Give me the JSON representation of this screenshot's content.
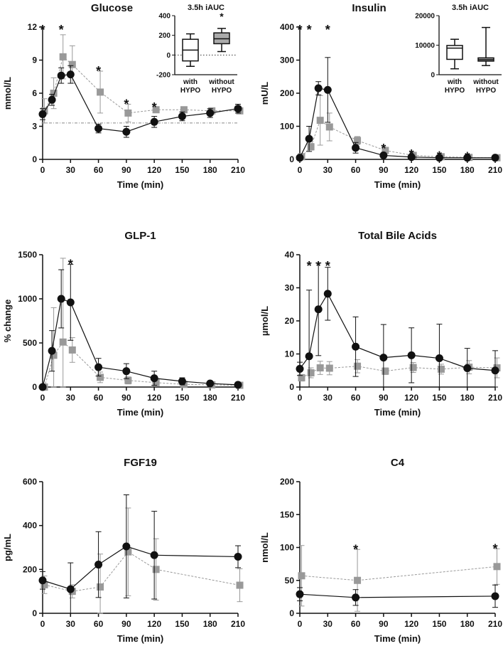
{
  "chart_data": [
    {
      "type": "line",
      "title": "Glucose",
      "xlabel": "Time (min)",
      "ylabel": "mmol/L",
      "ylim": [
        0,
        12
      ],
      "yticks": [
        0,
        3,
        6,
        9,
        12
      ],
      "xticks": [
        0,
        30,
        60,
        90,
        120,
        150,
        180,
        210
      ],
      "x": [
        0,
        10,
        20,
        30,
        60,
        90,
        120,
        150,
        180,
        210
      ],
      "series": [
        {
          "name": "with HYPO",
          "values": [
            4.1,
            5.4,
            7.6,
            7.7,
            2.8,
            2.5,
            3.4,
            3.9,
            4.2,
            4.6
          ],
          "err": [
            0.5,
            0.5,
            0.7,
            0.8,
            0.4,
            0.5,
            0.5,
            0.4,
            0.4,
            0.4
          ]
        },
        {
          "name": "without HYPO",
          "values": [
            4.4,
            6.0,
            9.3,
            8.6,
            6.1,
            4.2,
            4.5,
            4.5,
            4.4,
            4.4
          ],
          "err": [
            1.1,
            1.4,
            2.0,
            1.7,
            1.9,
            0.8,
            0.2,
            0.2,
            0.2,
            0.2
          ]
        }
      ],
      "hline": 3.3,
      "stars": [
        0,
        20,
        60,
        90,
        120
      ],
      "star_label": "*",
      "inset": {
        "title": "3.5h iAUC",
        "ylim": [
          -200,
          400
        ],
        "yticks": [
          -200,
          0,
          200,
          400
        ],
        "zero_line": true,
        "categories": [
          "with HYPO",
          "without HYPO"
        ],
        "cat_lines": [
          [
            "with",
            "HYPO"
          ],
          [
            "without",
            "HYPO"
          ]
        ],
        "boxes": [
          [
            -115,
            -60,
            50,
            160,
            215
          ],
          [
            35,
            115,
            165,
            225,
            270
          ]
        ],
        "stars": [
          1
        ]
      }
    },
    {
      "type": "line",
      "title": "Insulin",
      "xlabel": "Time (min)",
      "ylabel": "mU/L",
      "ylim": [
        0,
        400
      ],
      "yticks": [
        0,
        100,
        200,
        300,
        400
      ],
      "xticks": [
        0,
        30,
        60,
        90,
        120,
        150,
        180,
        210
      ],
      "x": [
        0,
        10,
        20,
        30,
        60,
        90,
        120,
        150,
        180,
        210
      ],
      "series": [
        {
          "name": "with HYPO",
          "values": [
            5,
            62,
            215,
            210,
            35,
            12,
            7,
            5,
            5,
            5
          ],
          "err": [
            3,
            38,
            20,
            98,
            16,
            4,
            3,
            2,
            2,
            2
          ]
        },
        {
          "name": "without HYPO",
          "values": [
            8,
            38,
            118,
            98,
            57,
            27,
            12,
            8,
            6,
            5
          ],
          "err": [
            4,
            10,
            75,
            42,
            12,
            5,
            3,
            2,
            2,
            2
          ]
        }
      ],
      "stars": [
        0,
        10,
        30,
        90,
        120,
        150,
        180
      ],
      "star_label": "*",
      "inset": {
        "title": "3.5h iAUC",
        "ylim": [
          0,
          20000
        ],
        "yticks": [
          0,
          10000,
          20000
        ],
        "zero_line": false,
        "categories": [
          "with HYPO",
          "without HYPO"
        ],
        "cat_lines": [
          [
            "with",
            "HYPO"
          ],
          [
            "without",
            "HYPO"
          ]
        ],
        "boxes": [
          [
            2000,
            5200,
            9000,
            9900,
            12000
          ],
          [
            3100,
            4600,
            5100,
            5700,
            16000
          ]
        ],
        "stars": []
      }
    },
    {
      "type": "line",
      "title": "GLP-1",
      "xlabel": "Time (min)",
      "ylabel": "% change",
      "ylim": [
        0,
        1500
      ],
      "yticks": [
        0,
        500,
        1000,
        1500
      ],
      "xticks": [
        0,
        30,
        60,
        90,
        120,
        150,
        180,
        210
      ],
      "x": [
        0,
        10,
        20,
        30,
        60,
        90,
        120,
        150,
        180,
        210
      ],
      "series": [
        {
          "name": "with HYPO",
          "values": [
            0,
            410,
            1000,
            960,
            225,
            180,
            100,
            65,
            40,
            25
          ],
          "err": [
            0,
            230,
            330,
            430,
            100,
            85,
            80,
            40,
            20,
            15
          ]
        },
        {
          "name": "without HYPO",
          "values": [
            0,
            360,
            510,
            420,
            110,
            75,
            50,
            30,
            25,
            20
          ],
          "err": [
            0,
            540,
            950,
            140,
            60,
            40,
            30,
            20,
            15,
            10
          ]
        }
      ],
      "stars": [
        30
      ],
      "star_label": "*"
    },
    {
      "type": "line",
      "title": "Total Bile Acids",
      "xlabel": "Time (min)",
      "ylabel": "µmol/L",
      "ylim": [
        0,
        40
      ],
      "yticks": [
        0,
        10,
        20,
        30,
        40
      ],
      "xticks": [
        0,
        30,
        60,
        90,
        120,
        150,
        180,
        210
      ],
      "x": [
        0,
        10,
        20,
        30,
        60,
        90,
        120,
        150,
        180,
        210
      ],
      "series": [
        {
          "name": "with HYPO",
          "values": [
            5.5,
            9.3,
            23.5,
            28.2,
            12.2,
            8.9,
            9.6,
            8.7,
            5.7,
            5.0
          ],
          "err": [
            2,
            20,
            14,
            8,
            9,
            10,
            8.3,
            10.3,
            6,
            6
          ]
        },
        {
          "name": "without HYPO",
          "values": [
            2.8,
            4.3,
            5.8,
            5.7,
            6.3,
            4.8,
            5.9,
            5.4,
            6.0,
            5.8
          ],
          "err": [
            1,
            1.5,
            2,
            2,
            2,
            1,
            1.5,
            1.5,
            2,
            3
          ]
        }
      ],
      "stars": [
        10,
        20,
        30
      ],
      "star_label": "*"
    },
    {
      "type": "line",
      "title": "FGF19",
      "xlabel": "Time (min)",
      "ylabel": "pg/mL",
      "ylim": [
        0,
        600
      ],
      "yticks": [
        0,
        200,
        400,
        600
      ],
      "xticks": [
        0,
        30,
        60,
        90,
        120,
        150,
        180,
        210
      ],
      "x": [
        0,
        30,
        60,
        90,
        120,
        210
      ],
      "series": [
        {
          "name": "with HYPO",
          "values": [
            150,
            110,
            222,
            305,
            265,
            258
          ],
          "err": [
            40,
            120,
            150,
            235,
            200,
            50
          ]
        },
        {
          "name": "without HYPO",
          "values": [
            130,
            100,
            120,
            280,
            200,
            128
          ],
          "err": [
            40,
            30,
            150,
            200,
            140,
            75
          ]
        }
      ],
      "stars": [],
      "star_label": "*"
    },
    {
      "type": "line",
      "title": "C4",
      "xlabel": "Time (min)",
      "ylabel": "nmol/L",
      "ylim": [
        0,
        200
      ],
      "yticks": [
        0,
        50,
        100,
        150,
        200
      ],
      "xticks": [
        0,
        30,
        60,
        90,
        120,
        150,
        180,
        210
      ],
      "x": [
        0,
        60,
        210
      ],
      "series": [
        {
          "name": "with HYPO",
          "values": [
            29,
            24,
            26
          ],
          "err": [
            10,
            12,
            17
          ]
        },
        {
          "name": "without HYPO",
          "values": [
            57,
            50,
            71
          ],
          "err": [
            46,
            47,
            27
          ]
        }
      ],
      "stars": [
        60,
        210
      ],
      "star_label": "*"
    }
  ],
  "colors": {
    "black": "#111111",
    "grey": "#999999"
  }
}
